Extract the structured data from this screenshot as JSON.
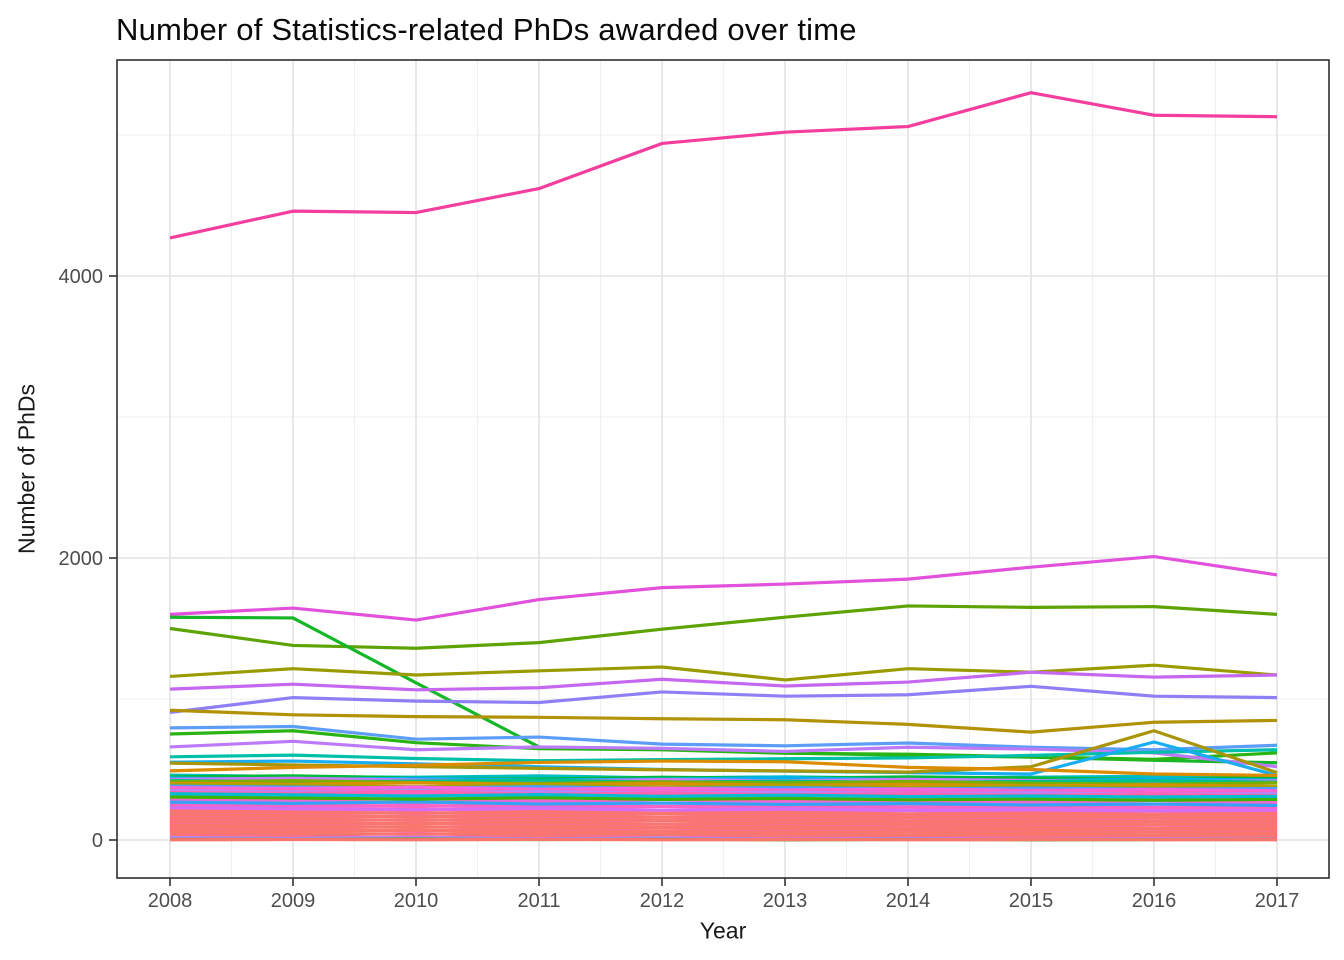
{
  "title": "Number of Statistics-related PhDs awarded over time",
  "chart_data": {
    "type": "line",
    "title": "Number of Statistics-related PhDs awarded over time",
    "xlabel": "Year",
    "ylabel": "Number of PhDs",
    "legend": "none",
    "grid": "on",
    "x": [
      2008,
      2009,
      2010,
      2011,
      2012,
      2013,
      2014,
      2015,
      2016,
      2017
    ],
    "x_ticks": [
      "2008",
      "2009",
      "2010",
      "2011",
      "2012",
      "2013",
      "2014",
      "2015",
      "2016",
      "2017"
    ],
    "y_ticks": [
      {
        "value": 0,
        "label": "0"
      },
      {
        "value": 2000,
        "label": "2000"
      },
      {
        "value": 4000,
        "label": "4000"
      }
    ],
    "y_minor": [
      1000,
      3000,
      5000
    ],
    "ylim": [
      -270,
      5530
    ],
    "colors": {
      "major_grid": "#e3e3e3",
      "minor_grid": "#efefef",
      "panel_border": "#2f2f2f",
      "tick_mark": "#333333",
      "tick_label": "#4d4d4d"
    },
    "series": [
      {
        "name": "series-01",
        "color": "#F43E9E",
        "values": [
          4270,
          4460,
          4450,
          4620,
          4940,
          5020,
          5060,
          5300,
          5140,
          5130
        ]
      },
      {
        "name": "series-02",
        "color": "#E251DC",
        "values": [
          1600,
          1645,
          1560,
          1705,
          1790,
          1815,
          1850,
          1935,
          2010,
          1880
        ]
      },
      {
        "name": "series-03",
        "color": "#5CA303",
        "values": [
          1500,
          1380,
          1360,
          1400,
          1495,
          1580,
          1660,
          1650,
          1655,
          1600
        ]
      },
      {
        "name": "series-04",
        "color": "#16B629",
        "values": [
          1580,
          1575,
          1115,
          660,
          645,
          618,
          600,
          588,
          565,
          548
        ]
      },
      {
        "name": "series-05",
        "color": "#9A9B00",
        "values": [
          1160,
          1215,
          1170,
          1200,
          1227,
          1135,
          1215,
          1190,
          1240,
          1170
        ]
      },
      {
        "name": "series-06",
        "color": "#C567EF",
        "values": [
          1070,
          1105,
          1065,
          1080,
          1140,
          1092,
          1120,
          1190,
          1155,
          1170
        ]
      },
      {
        "name": "series-07",
        "color": "#8E7FF5",
        "values": [
          905,
          1010,
          985,
          975,
          1050,
          1020,
          1030,
          1090,
          1020,
          1010
        ]
      },
      {
        "name": "series-08",
        "color": "#B29209",
        "values": [
          920,
          888,
          875,
          870,
          860,
          853,
          820,
          765,
          835,
          848
        ]
      },
      {
        "name": "series-09",
        "color": "#5C9DF7",
        "values": [
          795,
          805,
          715,
          730,
          680,
          668,
          688,
          658,
          640,
          672
        ]
      },
      {
        "name": "series-10",
        "color": "#2AB414",
        "values": [
          752,
          775,
          690,
          648,
          640,
          615,
          608,
          590,
          572,
          618
        ]
      },
      {
        "name": "series-11",
        "color": "#BC79F8",
        "values": [
          660,
          700,
          640,
          660,
          650,
          628,
          658,
          645,
          618,
          520
        ]
      },
      {
        "name": "series-12",
        "color": "#00C0A9",
        "values": [
          590,
          602,
          578,
          562,
          570,
          576,
          582,
          600,
          622,
          640
        ]
      },
      {
        "name": "series-13",
        "color": "#19ADF2",
        "values": [
          552,
          560,
          540,
          520,
          500,
          488,
          478,
          468,
          695,
          458
        ]
      },
      {
        "name": "series-14",
        "color": "#A99509",
        "values": [
          545,
          532,
          520,
          508,
          498,
          490,
          482,
          520,
          775,
          478
        ]
      },
      {
        "name": "series-15",
        "color": "#DB8C00",
        "values": [
          490,
          515,
          530,
          550,
          560,
          555,
          515,
          500,
          468,
          458
        ]
      }
    ],
    "background_series": [
      {
        "color": "#00BFC4",
        "values": [
          460,
          450,
          445,
          455,
          440,
          448,
          438,
          445,
          452,
          440
        ]
      },
      {
        "color": "#00BA38",
        "values": [
          448,
          455,
          440,
          432,
          445,
          438,
          448,
          440,
          430,
          445
        ]
      },
      {
        "color": "#00B0F6",
        "values": [
          440,
          430,
          438,
          425,
          432,
          440,
          428,
          420,
          432,
          425
        ]
      },
      {
        "color": "#C77CFF",
        "values": [
          430,
          438,
          425,
          418,
          428,
          420,
          430,
          422,
          412,
          420
        ]
      },
      {
        "color": "#00C08B",
        "values": [
          422,
          412,
          418,
          425,
          410,
          418,
          408,
          415,
          420,
          410
        ]
      },
      {
        "color": "#7CAE00",
        "values": [
          412,
          420,
          408,
          400,
          412,
          405,
          415,
          402,
          395,
          405
        ]
      },
      {
        "color": "#D89000",
        "values": [
          402,
          395,
          405,
          392,
          400,
          388,
          395,
          385,
          390,
          380
        ]
      },
      {
        "color": "#A3A500",
        "values": [
          392,
          385,
          378,
          388,
          375,
          382,
          372,
          380,
          370,
          375
        ]
      },
      {
        "color": "#4C9EFA",
        "values": [
          382,
          375,
          368,
          378,
          365,
          372,
          362,
          368,
          360,
          365
        ]
      },
      {
        "color": "#F564E3",
        "values": [
          372,
          365,
          375,
          360,
          368,
          355,
          362,
          352,
          358,
          350
        ]
      },
      {
        "color": "#FF61C3",
        "values": [
          360,
          352,
          345,
          355,
          342,
          350,
          340,
          345,
          335,
          340
        ]
      },
      {
        "color": "#B983FF",
        "values": [
          350,
          342,
          335,
          345,
          332,
          340,
          330,
          335,
          325,
          330
        ]
      },
      {
        "color": "#FF64B0",
        "values": [
          338,
          330,
          340,
          325,
          332,
          322,
          328,
          318,
          325,
          315
        ]
      },
      {
        "color": "#FC61D7",
        "values": [
          315,
          308,
          318,
          302,
          310,
          300,
          305,
          295,
          302,
          292
        ]
      },
      {
        "color": "#FF6AB3",
        "values": [
          292,
          285,
          295,
          280,
          288,
          278,
          282,
          272,
          280,
          270
        ]
      },
      {
        "color": "#EA69D4",
        "values": [
          280,
          272,
          265,
          275,
          262,
          270,
          260,
          265,
          255,
          262
        ]
      },
      {
        "color": "#F668C2",
        "values": [
          255,
          248,
          240,
          250,
          238,
          245,
          235,
          240,
          232,
          238
        ]
      },
      {
        "color": "#FB62C8",
        "values": [
          242,
          235,
          245,
          230,
          238,
          228,
          232,
          222,
          230,
          220
        ]
      },
      {
        "color": "#FF61C3",
        "values": [
          218,
          210,
          220,
          205,
          212,
          202,
          208,
          198,
          205,
          195
        ]
      },
      {
        "color": "#FF64B0",
        "values": [
          192,
          185,
          195,
          180,
          188,
          178,
          182,
          172,
          180,
          170
        ]
      },
      {
        "color": "#F564E3",
        "values": [
          168,
          160,
          170,
          155,
          162,
          152,
          158,
          148,
          155,
          145
        ]
      },
      {
        "color": "#FF6AB3",
        "values": [
          142,
          135,
          145,
          130,
          138,
          128,
          132,
          122,
          130,
          120
        ]
      },
      {
        "color": "#FC61D7",
        "values": [
          118,
          110,
          120,
          105,
          112,
          102,
          108,
          98,
          105,
          95
        ]
      },
      {
        "color": "#FF61C3",
        "values": [
          80,
          72,
          65,
          75,
          62,
          70,
          60,
          65,
          58,
          62
        ]
      },
      {
        "color": "#FF64B0",
        "values": [
          42,
          35,
          45,
          30,
          38,
          28,
          32,
          22,
          30,
          20
        ]
      },
      {
        "color": "#35A2F8",
        "values": [
          268,
          260,
          270,
          255,
          262,
          252,
          258,
          248,
          255,
          245
        ]
      },
      {
        "color": "#D56DF2",
        "values": [
          230,
          222,
          215,
          225,
          212,
          220,
          210,
          215,
          208,
          212
        ]
      },
      {
        "color": "#39B600",
        "values": [
          305,
          298,
          290,
          300,
          288,
          295,
          285,
          290,
          282,
          288
        ]
      },
      {
        "color": "#00BDD0",
        "values": [
          328,
          320,
          312,
          322,
          310,
          318,
          308,
          312,
          305,
          310
        ]
      },
      {
        "color": "#F8766D",
        "values": [
          205,
          198,
          190,
          200,
          188,
          195,
          185,
          190,
          182,
          188
        ]
      },
      {
        "color": "#F8766D",
        "values": [
          180,
          172,
          165,
          175,
          162,
          170,
          160,
          165,
          158,
          162
        ]
      },
      {
        "color": "#F8766D",
        "values": [
          155,
          148,
          140,
          150,
          138,
          145,
          135,
          140,
          132,
          138
        ]
      },
      {
        "color": "#F8766D",
        "values": [
          130,
          122,
          115,
          125,
          112,
          120,
          110,
          115,
          108,
          112
        ]
      },
      {
        "color": "#F8766D",
        "values": [
          105,
          98,
          90,
          100,
          88,
          95,
          85,
          90,
          82,
          88
        ]
      },
      {
        "color": "#F8766D",
        "values": [
          92,
          85,
          95,
          80,
          88,
          78,
          82,
          72,
          80,
          70
        ]
      },
      {
        "color": "#F8766D",
        "values": [
          68,
          60,
          70,
          55,
          62,
          52,
          58,
          48,
          55,
          45
        ]
      },
      {
        "color": "#F8766D",
        "values": [
          55,
          48,
          40,
          50,
          38,
          45,
          35,
          40,
          32,
          38
        ]
      },
      {
        "color": "#F8766D",
        "values": [
          30,
          22,
          15,
          25,
          12,
          20,
          10,
          15,
          8,
          12
        ]
      },
      {
        "color": "#F8766D",
        "values": [
          8,
          5,
          10,
          3,
          6,
          2,
          5,
          2,
          4,
          2
        ]
      },
      {
        "color": "#C77CFF",
        "values": [
          18,
          12,
          20,
          8,
          15,
          6,
          10,
          5,
          8,
          5
        ]
      },
      {
        "color": "#39B600",
        "values": [
          5,
          4,
          6,
          3,
          5,
          2,
          4,
          2,
          3,
          4
        ]
      },
      {
        "color": "#F8766D",
        "values": [
          2,
          3,
          2,
          4,
          2,
          3,
          2,
          3,
          2,
          3
        ]
      }
    ]
  }
}
